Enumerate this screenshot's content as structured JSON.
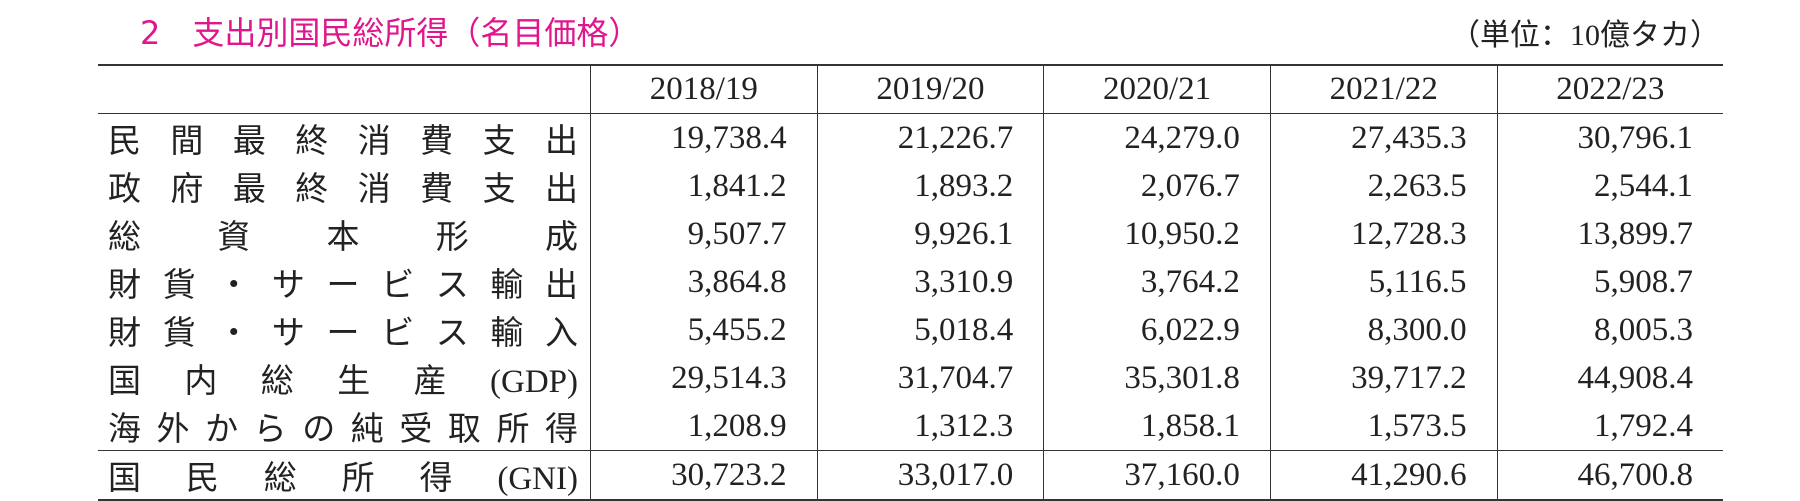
{
  "header": {
    "title": "2　支出別国民総所得（名目価格）",
    "unit": "（単位：10億タカ）"
  },
  "table": {
    "columns": [
      "2018/19",
      "2019/20",
      "2020/21",
      "2021/22",
      "2022/23"
    ],
    "rows": [
      [
        "民間最終消費支出",
        "19,738.4",
        "21,226.7",
        "24,279.0",
        "27,435.3",
        "30,796.1"
      ],
      [
        "政府最終消費支出",
        "1,841.2",
        "1,893.2",
        "2,076.7",
        "2,263.5",
        "2,544.1"
      ],
      [
        "総資本形成",
        "9,507.7",
        "9,926.1",
        "10,950.2",
        "12,728.3",
        "13,899.7"
      ],
      [
        "財貨・サービス輸出",
        "3,864.8",
        "3,310.9",
        "3,764.2",
        "5,116.5",
        "5,908.7"
      ],
      [
        "財貨・サービス輸入",
        "5,455.2",
        "5,018.4",
        "6,022.9",
        "8,300.0",
        "8,005.3"
      ],
      [
        "国内総生産(GDP)",
        "29,514.3",
        "31,704.7",
        "35,301.8",
        "39,717.2",
        "44,908.4"
      ],
      [
        "海外からの純受取所得",
        "1,208.9",
        "1,312.3",
        "1,858.1",
        "1,573.5",
        "1,792.4"
      ],
      [
        "国民総所得(GNI)",
        "30,723.2",
        "33,017.0",
        "37,160.0",
        "41,290.6",
        "46,700.8"
      ]
    ]
  }
}
